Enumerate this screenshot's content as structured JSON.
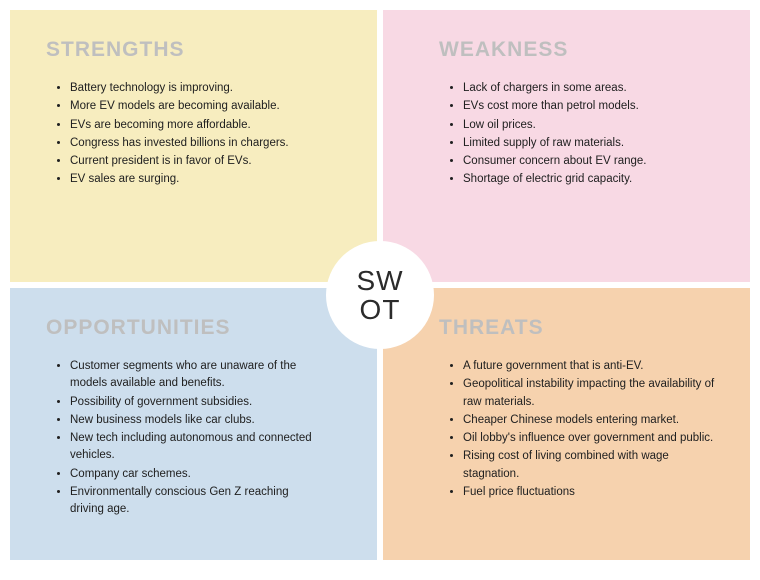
{
  "center_label": "SW\nOT",
  "quadrants": {
    "strengths": {
      "title": "STRENGTHS",
      "bg_color": "#f7edbf",
      "items": [
        "Battery technology is improving.",
        "More EV models are becoming available.",
        "EVs are becoming more affordable.",
        "Congress has invested billions in chargers.",
        "Current president is in favor of EVs.",
        "EV sales are surging."
      ]
    },
    "weakness": {
      "title": "WEAKNESS",
      "bg_color": "#f8d9e4",
      "items": [
        "Lack of chargers in some areas.",
        "EVs cost more than petrol models.",
        "Low oil prices.",
        "Limited supply of raw materials.",
        "Consumer concern about EV range.",
        "Shortage of electric grid capacity."
      ]
    },
    "opportunities": {
      "title": "OPPORTUNITIES",
      "bg_color": "#cddeed",
      "items": [
        "Customer segments who are unaware of the models available and benefits.",
        "Possibility of government subsidies.",
        "New business models like car clubs.",
        "New tech including autonomous and connected vehicles.",
        "Company car schemes.",
        "Environmentally conscious Gen Z reaching driving age."
      ]
    },
    "threats": {
      "title": "THREATS",
      "bg_color": "#f6d2ae",
      "items": [
        "A future government that is anti-EV.",
        "Geopolitical instability impacting the availability of raw materials.",
        "Cheaper Chinese models entering market.",
        "Oil lobby's influence over government and public.",
        "Rising cost of living combined with wage stagnation.",
        "Fuel price fluctuations"
      ]
    }
  },
  "style": {
    "heading_color": "#bfbfbf",
    "text_color": "#202020",
    "circle_bg": "#ffffff",
    "circle_text_color": "#2b2b2b",
    "page_bg": "#ffffff",
    "heading_fontsize": 21,
    "item_fontsize": 11.5,
    "circle_fontsize": 28
  }
}
